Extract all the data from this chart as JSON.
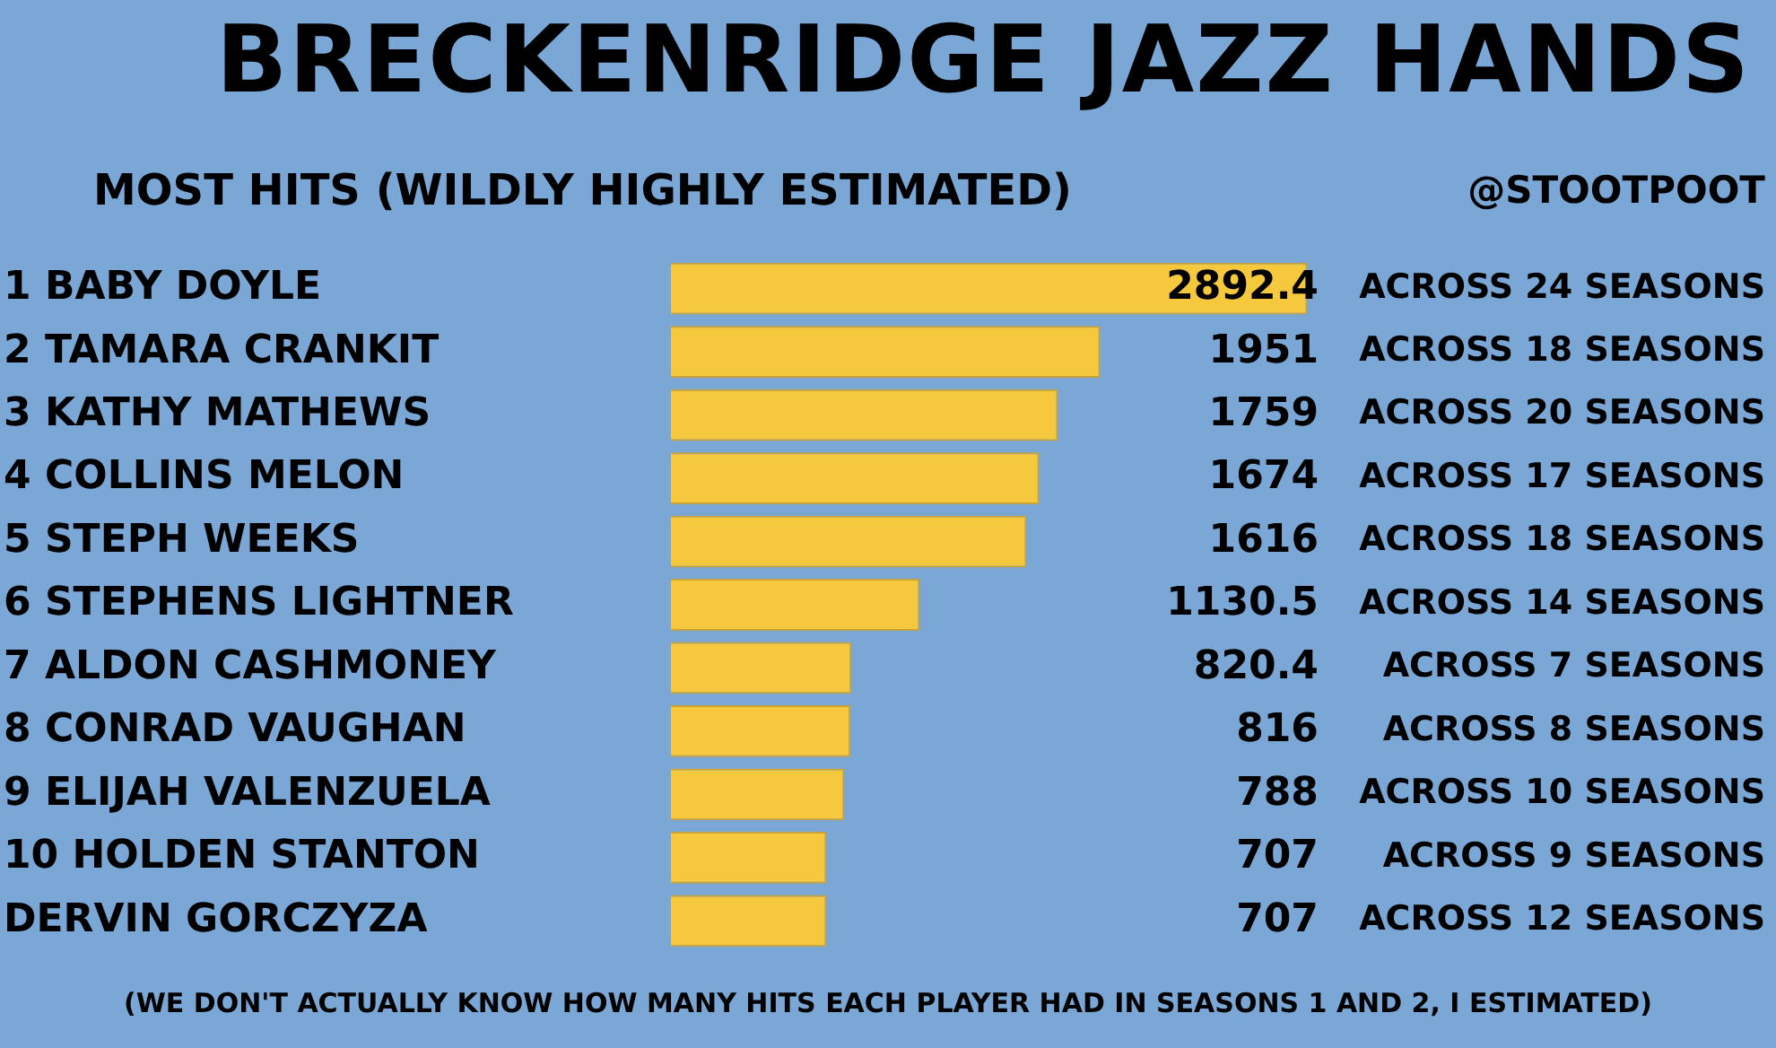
{
  "chart_data": {
    "type": "bar",
    "orientation": "horizontal",
    "title": "BRECKENRIDGE JAZZ HANDS",
    "subtitle": "MOST HITS (WILDLY HIGHLY ESTIMATED)",
    "categories": [
      "1 BABY DOYLE",
      "2 TAMARA CRANKIT",
      "3 KATHY MATHEWS",
      "4 COLLINS MELON",
      "5 STEPH WEEKS",
      "6 STEPHENS LIGHTNER",
      "7 ALDON CASHMONEY",
      "8 CONRAD VAUGHAN",
      "9 ELIJAH VALENZUELA",
      "10 HOLDEN STANTON",
      "DERVIN GORCZYZA"
    ],
    "values": [
      2892.4,
      1951,
      1759,
      1674,
      1616,
      1130.5,
      820.4,
      816,
      788,
      707,
      707
    ],
    "color": "#f5c83e",
    "data_labels": true,
    "annotations": [
      "@STOOTPOOT",
      "ACROSS 24 SEASONS",
      "ACROSS 18 SEASONS",
      "ACROSS 20 SEASONS",
      "ACROSS 17 SEASONS",
      "ACROSS 18 SEASONS",
      "ACROSS 14 SEASONS",
      "ACROSS 7 SEASONS",
      "ACROSS 8 SEASONS",
      "ACROSS 10 SEASONS",
      "ACROSS 9 SEASONS",
      "ACROSS 12 SEASONS",
      "(WE DON'T ACTUALLY KNOW HOW MANY HITS EACH PLAYER HAD IN SEASONS 1 AND 2, I ESTIMATED)"
    ]
  }
}
